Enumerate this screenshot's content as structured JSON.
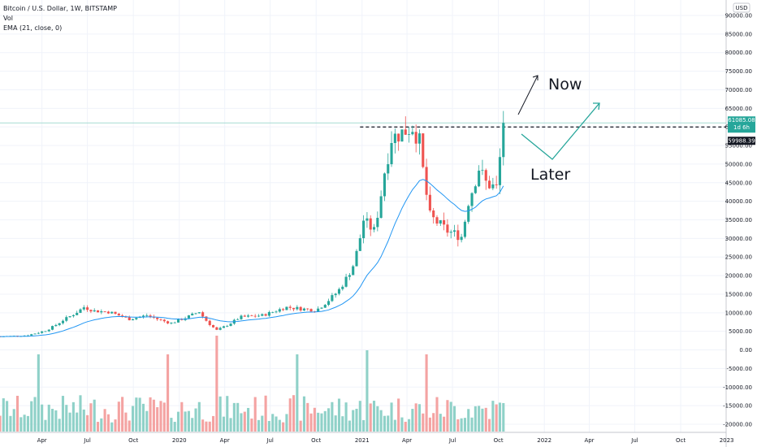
{
  "legend": {
    "symbol": "Bitcoin / U.S. Dollar, 1W, BITSTAMP",
    "volume": "Vol",
    "ema": "EMA (21, close, 0)"
  },
  "currency": "USD",
  "price_tag": {
    "label": "61085.08",
    "countdown": "1d 6h"
  },
  "level_tag": {
    "label": "59988.39"
  },
  "annotations": {
    "now": "Now",
    "later": "Later"
  },
  "colors": {
    "up": "#26a69a",
    "down": "#ef5350",
    "ema": "#2196f3",
    "vol_up": "#8fd1c8",
    "vol_down": "#f4a3a2",
    "last_line": "#a6dbd4"
  },
  "chart_data": {
    "type": "candlestick",
    "price_axis": {
      "min": -20000,
      "max": 90000,
      "ticks": [
        -20000,
        -15000,
        -10000,
        -5000,
        0,
        5000,
        10000,
        15000,
        20000,
        25000,
        30000,
        35000,
        40000,
        45000,
        50000,
        55000,
        60000,
        65000,
        70000,
        75000,
        80000,
        85000,
        90000
      ],
      "tick_labels": [
        "-20000.00",
        "-15000.00",
        "-10000.00",
        "-5000.00",
        "0.00",
        "5000.00",
        "10000.00",
        "15000.00",
        "20000.00",
        "25000.00",
        "30000.00",
        "35000.00",
        "40000.00",
        "45000.00",
        "50000.00",
        "55000.00",
        "60000.00",
        "65000.00",
        "70000.00",
        "75000.00",
        "80000.00",
        "85000.00",
        "90000.00"
      ]
    },
    "time_axis": {
      "start": "2019-01-07",
      "end": "2022-12-31",
      "ticks": [
        {
          "label": "Apr",
          "date": "2019-04-01"
        },
        {
          "label": "Jul",
          "date": "2019-07-01"
        },
        {
          "label": "Oct",
          "date": "2019-10-01"
        },
        {
          "label": "2020",
          "date": "2020-01-01"
        },
        {
          "label": "Apr",
          "date": "2020-04-01"
        },
        {
          "label": "Jul",
          "date": "2020-07-01"
        },
        {
          "label": "Oct",
          "date": "2020-10-01"
        },
        {
          "label": "2021",
          "date": "2021-01-01"
        },
        {
          "label": "Apr",
          "date": "2021-04-01"
        },
        {
          "label": "Jul",
          "date": "2021-07-01"
        },
        {
          "label": "Oct",
          "date": "2021-10-01"
        },
        {
          "label": "2022",
          "date": "2022-01-01"
        },
        {
          "label": "Apr",
          "date": "2022-04-01"
        },
        {
          "label": "Jul",
          "date": "2022-07-01"
        },
        {
          "label": "Oct",
          "date": "2022-10-01"
        },
        {
          "label": "2023",
          "date": "2023-01-01"
        }
      ]
    },
    "last_price": 61085.08,
    "resistance_level": 59988.39,
    "series_close_anchors": [
      {
        "date": "2019-01-07",
        "close": 3600
      },
      {
        "date": "2019-03-01",
        "close": 3900
      },
      {
        "date": "2019-04-08",
        "close": 5200
      },
      {
        "date": "2019-05-13",
        "close": 8000
      },
      {
        "date": "2019-06-24",
        "close": 11500
      },
      {
        "date": "2019-07-15",
        "close": 10500
      },
      {
        "date": "2019-08-15",
        "close": 10200
      },
      {
        "date": "2019-09-23",
        "close": 8300
      },
      {
        "date": "2019-10-28",
        "close": 9300
      },
      {
        "date": "2019-12-15",
        "close": 7200
      },
      {
        "date": "2020-02-10",
        "close": 10300
      },
      {
        "date": "2020-03-16",
        "close": 5300
      },
      {
        "date": "2020-05-01",
        "close": 8800
      },
      {
        "date": "2020-06-15",
        "close": 9300
      },
      {
        "date": "2020-08-01",
        "close": 11500
      },
      {
        "date": "2020-10-01",
        "close": 10700
      },
      {
        "date": "2020-11-15",
        "close": 16000
      },
      {
        "date": "2020-12-15",
        "close": 23000
      },
      {
        "date": "2021-01-04",
        "close": 35000
      },
      {
        "date": "2021-01-25",
        "close": 32000
      },
      {
        "date": "2021-02-15",
        "close": 48000
      },
      {
        "date": "2021-03-01",
        "close": 57000
      },
      {
        "date": "2021-03-15",
        "close": 58000
      },
      {
        "date": "2021-04-12",
        "close": 60000
      },
      {
        "date": "2021-04-26",
        "close": 56000
      },
      {
        "date": "2021-05-17",
        "close": 36000
      },
      {
        "date": "2021-06-21",
        "close": 32000
      },
      {
        "date": "2021-07-19",
        "close": 30500
      },
      {
        "date": "2021-08-02",
        "close": 40000
      },
      {
        "date": "2021-08-23",
        "close": 49000
      },
      {
        "date": "2021-09-06",
        "close": 45000
      },
      {
        "date": "2021-09-27",
        "close": 43500
      },
      {
        "date": "2021-10-11",
        "close": 61085
      }
    ],
    "ema_period": 21
  }
}
